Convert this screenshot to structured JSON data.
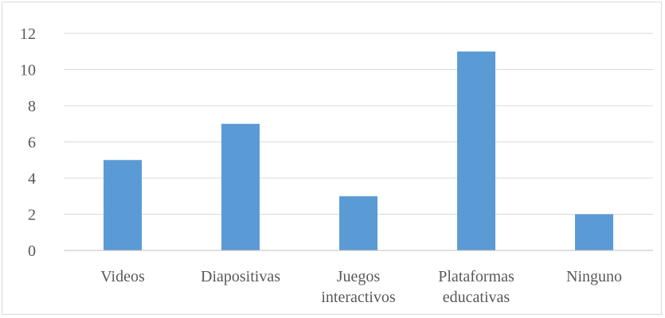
{
  "chart_data": {
    "type": "bar",
    "categories": [
      [
        "Videos"
      ],
      [
        "Diapositivas"
      ],
      [
        "Juegos",
        "interactivos"
      ],
      [
        "Plataformas",
        "educativas"
      ],
      [
        "Ninguno"
      ]
    ],
    "values": [
      5,
      7,
      3,
      11,
      2
    ],
    "title": "",
    "xlabel": "",
    "ylabel": "",
    "ylim": [
      0,
      12
    ],
    "yticks": [
      "0",
      "2",
      "4",
      "6",
      "8",
      "10",
      "12"
    ],
    "grid": true,
    "legend": "none",
    "colors": {
      "bar": "#5b9bd5",
      "grid": "#d9d9d9",
      "axis": "#bfbfbf",
      "text": "#595959"
    }
  }
}
